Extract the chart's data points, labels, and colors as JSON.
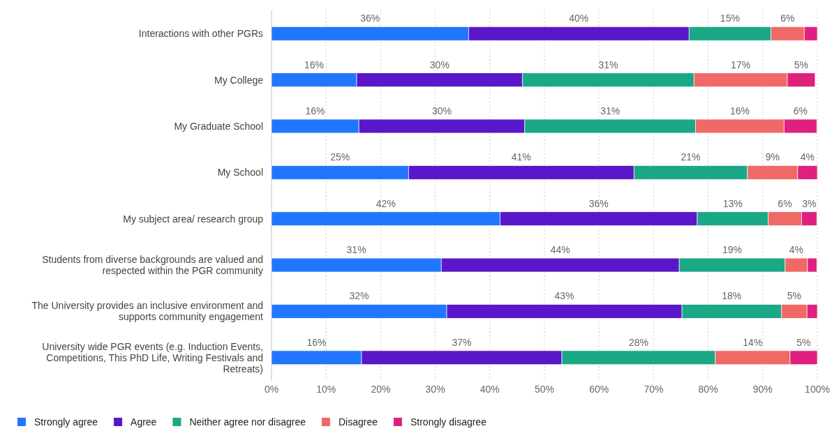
{
  "chart_data": {
    "type": "bar",
    "orientation": "horizontal",
    "stacked": true,
    "categories": [
      "Interactions with other PGRs",
      "My College",
      "My Graduate School",
      "My School",
      "My subject area/ research group",
      "Students from diverse backgrounds are valued and respected within the PGR community",
      "The University provides an inclusive environment and supports community engagement",
      "University wide PGR events (e.g. Induction Events, Competitions, This PhD Life, Writing Festivals and Retreats)"
    ],
    "series": [
      {
        "name": "Strongly agree",
        "color": "#2176ff",
        "values": [
          36.1,
          15.6,
          16.0,
          25.1,
          41.9,
          31.1,
          32.1,
          16.5
        ],
        "value_labels": [
          "36%",
          "16%",
          "16%",
          "25%",
          "42%",
          "31%",
          "32%",
          "16%"
        ]
      },
      {
        "name": "Agree",
        "color": "#5a17c9",
        "values": [
          40.4,
          30.4,
          30.4,
          41.3,
          36.1,
          43.6,
          43.1,
          36.7
        ],
        "value_labels": [
          "40%",
          "30%",
          "30%",
          "41%",
          "36%",
          "44%",
          "43%",
          "37%"
        ]
      },
      {
        "name": "Neither agree nor disagree",
        "color": "#1aa886",
        "values": [
          15.0,
          31.4,
          31.3,
          20.8,
          13.0,
          19.4,
          18.2,
          28.1
        ],
        "value_labels": [
          "15%",
          "31%",
          "31%",
          "21%",
          "13%",
          "19%",
          "18%",
          "28%"
        ]
      },
      {
        "name": "Disagree",
        "color": "#ef6a66",
        "values": [
          6.1,
          17.1,
          16.2,
          9.2,
          6.1,
          4.1,
          4.7,
          13.7
        ],
        "value_labels": [
          "6%",
          "17%",
          "16%",
          "9%",
          "6%",
          "4%",
          "5%",
          "14%"
        ]
      },
      {
        "name": "Strongly disagree",
        "color": "#e0207f",
        "values": [
          2.4,
          5.1,
          6.0,
          3.6,
          2.8,
          1.7,
          1.9,
          5.0
        ],
        "value_labels": [
          null,
          "5%",
          "6%",
          "4%",
          "3%",
          null,
          null,
          "5%"
        ]
      }
    ],
    "xlim": [
      0,
      100
    ],
    "xticks": [
      {
        "value": 0,
        "label": "0%"
      },
      {
        "value": 10,
        "label": "10%"
      },
      {
        "value": 20,
        "label": "20%"
      },
      {
        "value": 30,
        "label": "30%"
      },
      {
        "value": 40,
        "label": "40%"
      },
      {
        "value": 50,
        "label": "50%"
      },
      {
        "value": 60,
        "label": "60%"
      },
      {
        "value": 70,
        "label": "70%"
      },
      {
        "value": 80,
        "label": "80%"
      },
      {
        "value": 90,
        "label": "90%"
      },
      {
        "value": 100,
        "label": "100%"
      }
    ],
    "grid": "x",
    "legend": "bottom left"
  }
}
